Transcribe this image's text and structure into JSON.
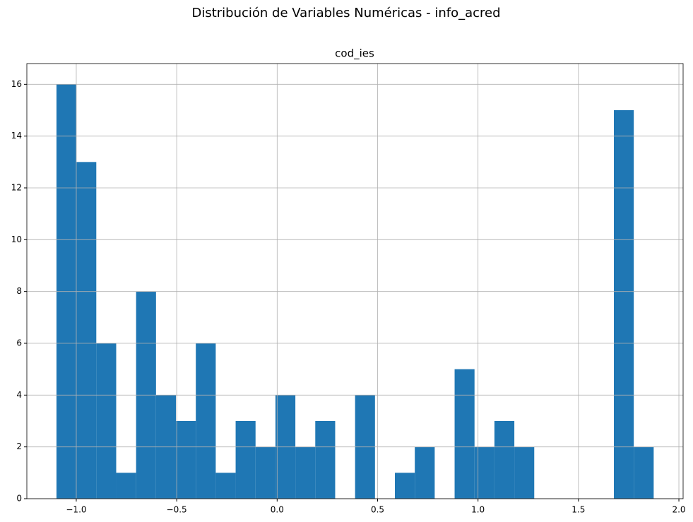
{
  "chart_data": {
    "type": "histogram",
    "title": "Distribución de Variables Numéricas - info_acred",
    "subtitle": "cod_ies",
    "bins": [
      -1.0985,
      -0.9994,
      -0.9003,
      -0.8012,
      -0.7021,
      -0.603,
      -0.5039,
      -0.4048,
      -0.3057,
      -0.2066,
      -0.1075,
      -0.0084,
      0.0907,
      0.1898,
      0.2889,
      0.388,
      0.4871,
      0.5862,
      0.6853,
      0.7844,
      0.8835,
      0.9826,
      1.0817,
      1.1808,
      1.2799,
      1.379,
      1.4781,
      1.5772,
      1.6763,
      1.7754,
      1.8745
    ],
    "values": [
      16,
      13,
      6,
      1,
      8,
      4,
      3,
      6,
      1,
      3,
      2,
      4,
      2,
      3,
      0,
      4,
      0,
      1,
      2,
      0,
      5,
      2,
      3,
      2,
      0,
      0,
      0,
      0,
      15,
      2
    ],
    "color": "#1f77b4",
    "xlim": [
      -1.246,
      2.021
    ],
    "ylim": [
      0,
      16.8
    ],
    "xticks": [
      {
        "value": -1.0,
        "label": "−1.0"
      },
      {
        "value": -0.5,
        "label": "−0.5"
      },
      {
        "value": 0.0,
        "label": "0.0"
      },
      0.5,
      {
        "value": 1.0,
        "label": "1.0"
      },
      1.5,
      {
        "value": 2.0,
        "label": "2.0"
      }
    ],
    "yticks": [
      0,
      2,
      4,
      6,
      8,
      10,
      12,
      14,
      16
    ],
    "grid": true
  }
}
